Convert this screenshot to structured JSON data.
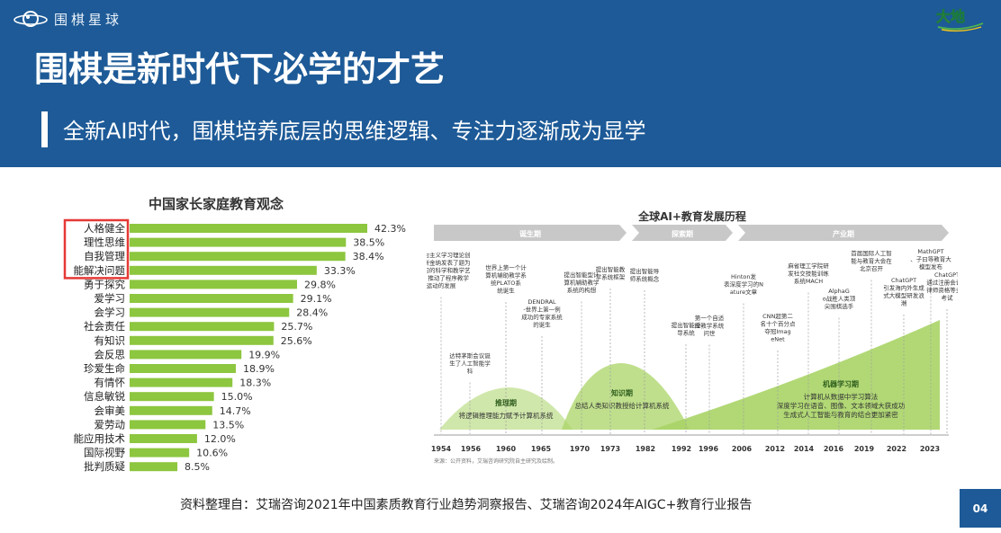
{
  "header": {
    "brand_name": "围棋星球",
    "brand_logo_icon": "planet-ring-icon",
    "corner_logo_text": "大地",
    "corner_logo_icon": "dadi-global-logo",
    "title": "围棋是新时代下必学的才艺",
    "subtitle": "全新AI时代，围棋培养底层的思维逻辑、专注力逐渐成为显学"
  },
  "footer": {
    "source": "资料整理自：艾瑞咨询2021年中国素质教育行业趋势洞察报告、艾瑞咨询2024年AIGC+教育行业报告",
    "page_number": "04"
  },
  "colors": {
    "header_bg": "#1d5a97",
    "bar": "#8dc63f",
    "highlight_box": "#e53935",
    "timeline_arrow": "#c8c8c8",
    "hill": "#a9d466"
  },
  "chart_data": [
    {
      "type": "bar",
      "orientation": "horizontal",
      "title": "中国家长家庭教育观念",
      "categories": [
        "人格健全",
        "理性思维",
        "自我管理",
        "能解决问题",
        "勇于探究",
        "爱学习",
        "会学习",
        "社会责任",
        "有知识",
        "会反思",
        "珍爱生命",
        "有情怀",
        "信息敏锐",
        "会审美",
        "爱劳动",
        "能应用技术",
        "国际视野",
        "批判质疑"
      ],
      "values": [
        42.3,
        38.5,
        38.4,
        33.3,
        29.8,
        29.1,
        28.4,
        25.7,
        25.6,
        19.9,
        18.9,
        18.3,
        15.0,
        14.7,
        13.5,
        12.0,
        10.6,
        8.5
      ],
      "value_labels": [
        "42.3%",
        "38.5%",
        "38.4%",
        "33.3%",
        "29.8%",
        "29.1%",
        "28.4%",
        "25.7%",
        "25.6%",
        "19.9%",
        "18.9%",
        "18.3%",
        "15.0%",
        "14.7%",
        "13.5%",
        "12.0%",
        "10.6%",
        "8.5%"
      ],
      "highlighted_categories": [
        "人格健全",
        "理性思维",
        "自我管理",
        "能解决问题"
      ],
      "xlim": [
        0,
        42.3
      ]
    },
    {
      "type": "timeline",
      "title": "全球AI+教育发展历程",
      "phases": [
        "诞生期",
        "探索期",
        "产业期"
      ],
      "x_ticks": [
        "1954",
        "1956",
        "1960",
        "1965",
        "1970",
        "1973",
        "1982",
        "1992",
        "1996",
        "2006",
        "2012",
        "2014",
        "2016",
        "2019",
        "2022",
        "2023"
      ],
      "periods": [
        {
          "name": "推理期",
          "text": "将逻辑推理能力赋予计算机系统"
        },
        {
          "name": "知识期",
          "text": "总结人类知识教授给计算机系统"
        },
        {
          "name": "机器学习期",
          "text": "计算机从数据中学习算法 深度学习在语音、图像、文本领域大获成功 生成式人工智能与教育的结合更加紧密"
        }
      ],
      "events": [
        {
          "year": "1954",
          "text": "新行为主义学习理论创始人斯金纳发表了题为《学习的科学和教学艺术》，推动了程序教学运动的发展"
        },
        {
          "year": "1956",
          "text": "达特茅斯会议诞生了人工智能学科"
        },
        {
          "year": "1960",
          "text": "世界上第一个计算机辅助教学系统PLATO系统诞生"
        },
        {
          "year": "1965",
          "text": "DENDRAL-世界上第一例成功的专家系统的诞生"
        },
        {
          "year": "1970",
          "text": "提出智能型计算机辅助教学系统的构想"
        },
        {
          "year": "1973",
          "text": "提出智能教学系统框架"
        },
        {
          "year": "1982",
          "text": "提出智能导师系统概念"
        },
        {
          "year": "1992",
          "text": "提出智能授导系统"
        },
        {
          "year": "1996",
          "text": "第一个自适应教学系统问世"
        },
        {
          "year": "2006",
          "text": "Hinton发表深度学习的Nature文章"
        },
        {
          "year": "2012",
          "text": "CNN超第二名十个百分点夺冠ImageNet"
        },
        {
          "year": "2014",
          "text": "麻省理工学院研发社交技能训练系统MACH"
        },
        {
          "year": "2016",
          "text": "AlphaGo战胜人类顶尖围棋选手"
        },
        {
          "year": "2019",
          "text": "首届国际人工智能与教育大会在北京召开"
        },
        {
          "year": "2022",
          "text": "ChatGPT引发海内外生成式大模型研发浪潮"
        },
        {
          "year": "2023",
          "text": "MathGPT、子曰等教育大模型发布"
        },
        {
          "year": "2023",
          "text": "ChatGPT通过注册会计、律师资格等多种考试"
        }
      ],
      "source": "来源：公开资料，艾瑞咨询研究院自主研究及绘制。"
    }
  ]
}
